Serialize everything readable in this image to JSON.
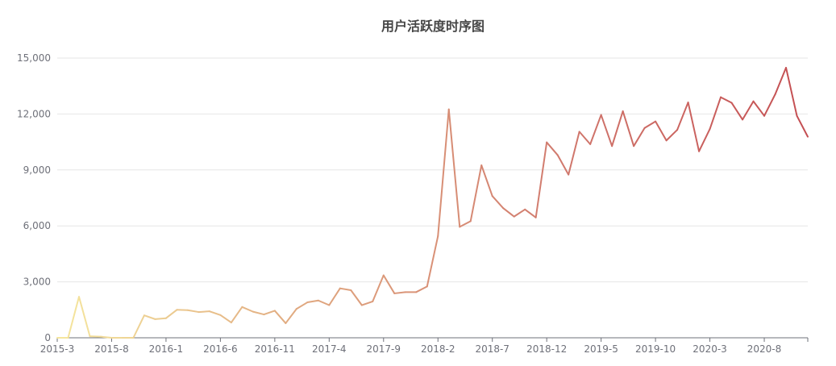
{
  "chart_data": {
    "type": "line",
    "title": "用户活跃度时序图",
    "xlabel": "",
    "ylabel": "",
    "ylim": [
      0,
      15000
    ],
    "y_ticks": [
      "0",
      "3,000",
      "6,000",
      "9,000",
      "12,000",
      "15,000"
    ],
    "x_tick_labels": [
      "2015-3",
      "2015-8",
      "2016-1",
      "2016-6",
      "2016-11",
      "2017-4",
      "2017-9",
      "2018-2",
      "2018-7",
      "2018-12",
      "2019-5",
      "2019-10",
      "2020-3",
      "2020-8"
    ],
    "grid": true,
    "color_gradient": [
      "#f5e79e",
      "#e0a77f",
      "#d17a6e",
      "#c44e52"
    ],
    "x": [
      "2015-3",
      "2015-4",
      "2015-5",
      "2015-6",
      "2015-7",
      "2015-8",
      "2015-9",
      "2015-10",
      "2015-11",
      "2015-12",
      "2016-1",
      "2016-2",
      "2016-3",
      "2016-4",
      "2016-5",
      "2016-6",
      "2016-7",
      "2016-8",
      "2016-9",
      "2016-10",
      "2016-11",
      "2016-12",
      "2017-1",
      "2017-2",
      "2017-3",
      "2017-4",
      "2017-5",
      "2017-6",
      "2017-7",
      "2017-8",
      "2017-9",
      "2017-10",
      "2017-11",
      "2017-12",
      "2018-1",
      "2018-2",
      "2018-3",
      "2018-4",
      "2018-5",
      "2018-6",
      "2018-7",
      "2018-8",
      "2018-9",
      "2018-10",
      "2018-11",
      "2018-12",
      "2019-1",
      "2019-2",
      "2019-3",
      "2019-4",
      "2019-5",
      "2019-6",
      "2019-7",
      "2019-8",
      "2019-9",
      "2019-10",
      "2019-11",
      "2019-12",
      "2020-1",
      "2020-2",
      "2020-3",
      "2020-4",
      "2020-5",
      "2020-6",
      "2020-7",
      "2020-8",
      "2020-9",
      "2020-10",
      "2020-11",
      "2020-12"
    ],
    "values": [
      0,
      0,
      2200,
      80,
      60,
      0,
      0,
      0,
      1200,
      1000,
      1050,
      1500,
      1480,
      1380,
      1420,
      1220,
      820,
      1650,
      1400,
      1250,
      1450,
      780,
      1550,
      1900,
      2000,
      1750,
      2650,
      2550,
      1750,
      1950,
      3350,
      2380,
      2450,
      2450,
      2750,
      5450,
      12250,
      5950,
      6250,
      9250,
      7600,
      6950,
      6500,
      6880,
      6450,
      10480,
      9800,
      8750,
      11050,
      10380,
      11950,
      10280,
      12150,
      10280,
      11250,
      11600,
      10580,
      11150,
      12620,
      10000,
      11200,
      12900,
      12600,
      11700,
      12680,
      11900,
      13050,
      14480,
      11900,
      10780
    ]
  }
}
